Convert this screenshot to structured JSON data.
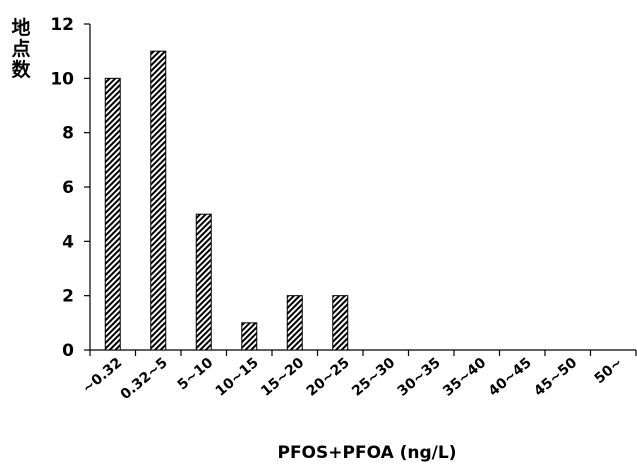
{
  "chart_data": {
    "type": "bar",
    "xlabel": "PFOS+PFOA (ng/L)",
    "ylabel": "地点数",
    "ylim": [
      0,
      12
    ],
    "yticks": [
      0,
      2,
      4,
      6,
      8,
      10,
      12
    ],
    "categories": [
      "~0.32",
      "0.32~5",
      "5~10",
      "10~15",
      "15~20",
      "20~25",
      "25~30",
      "30~35",
      "35~40",
      "40~45",
      "45~50",
      "50~"
    ],
    "values": [
      10,
      11,
      5,
      1,
      2,
      2,
      0,
      0,
      0,
      0,
      0,
      0
    ],
    "bar_pattern": "diagonal-hatch",
    "bar_color": "#000000",
    "grid": false
  }
}
